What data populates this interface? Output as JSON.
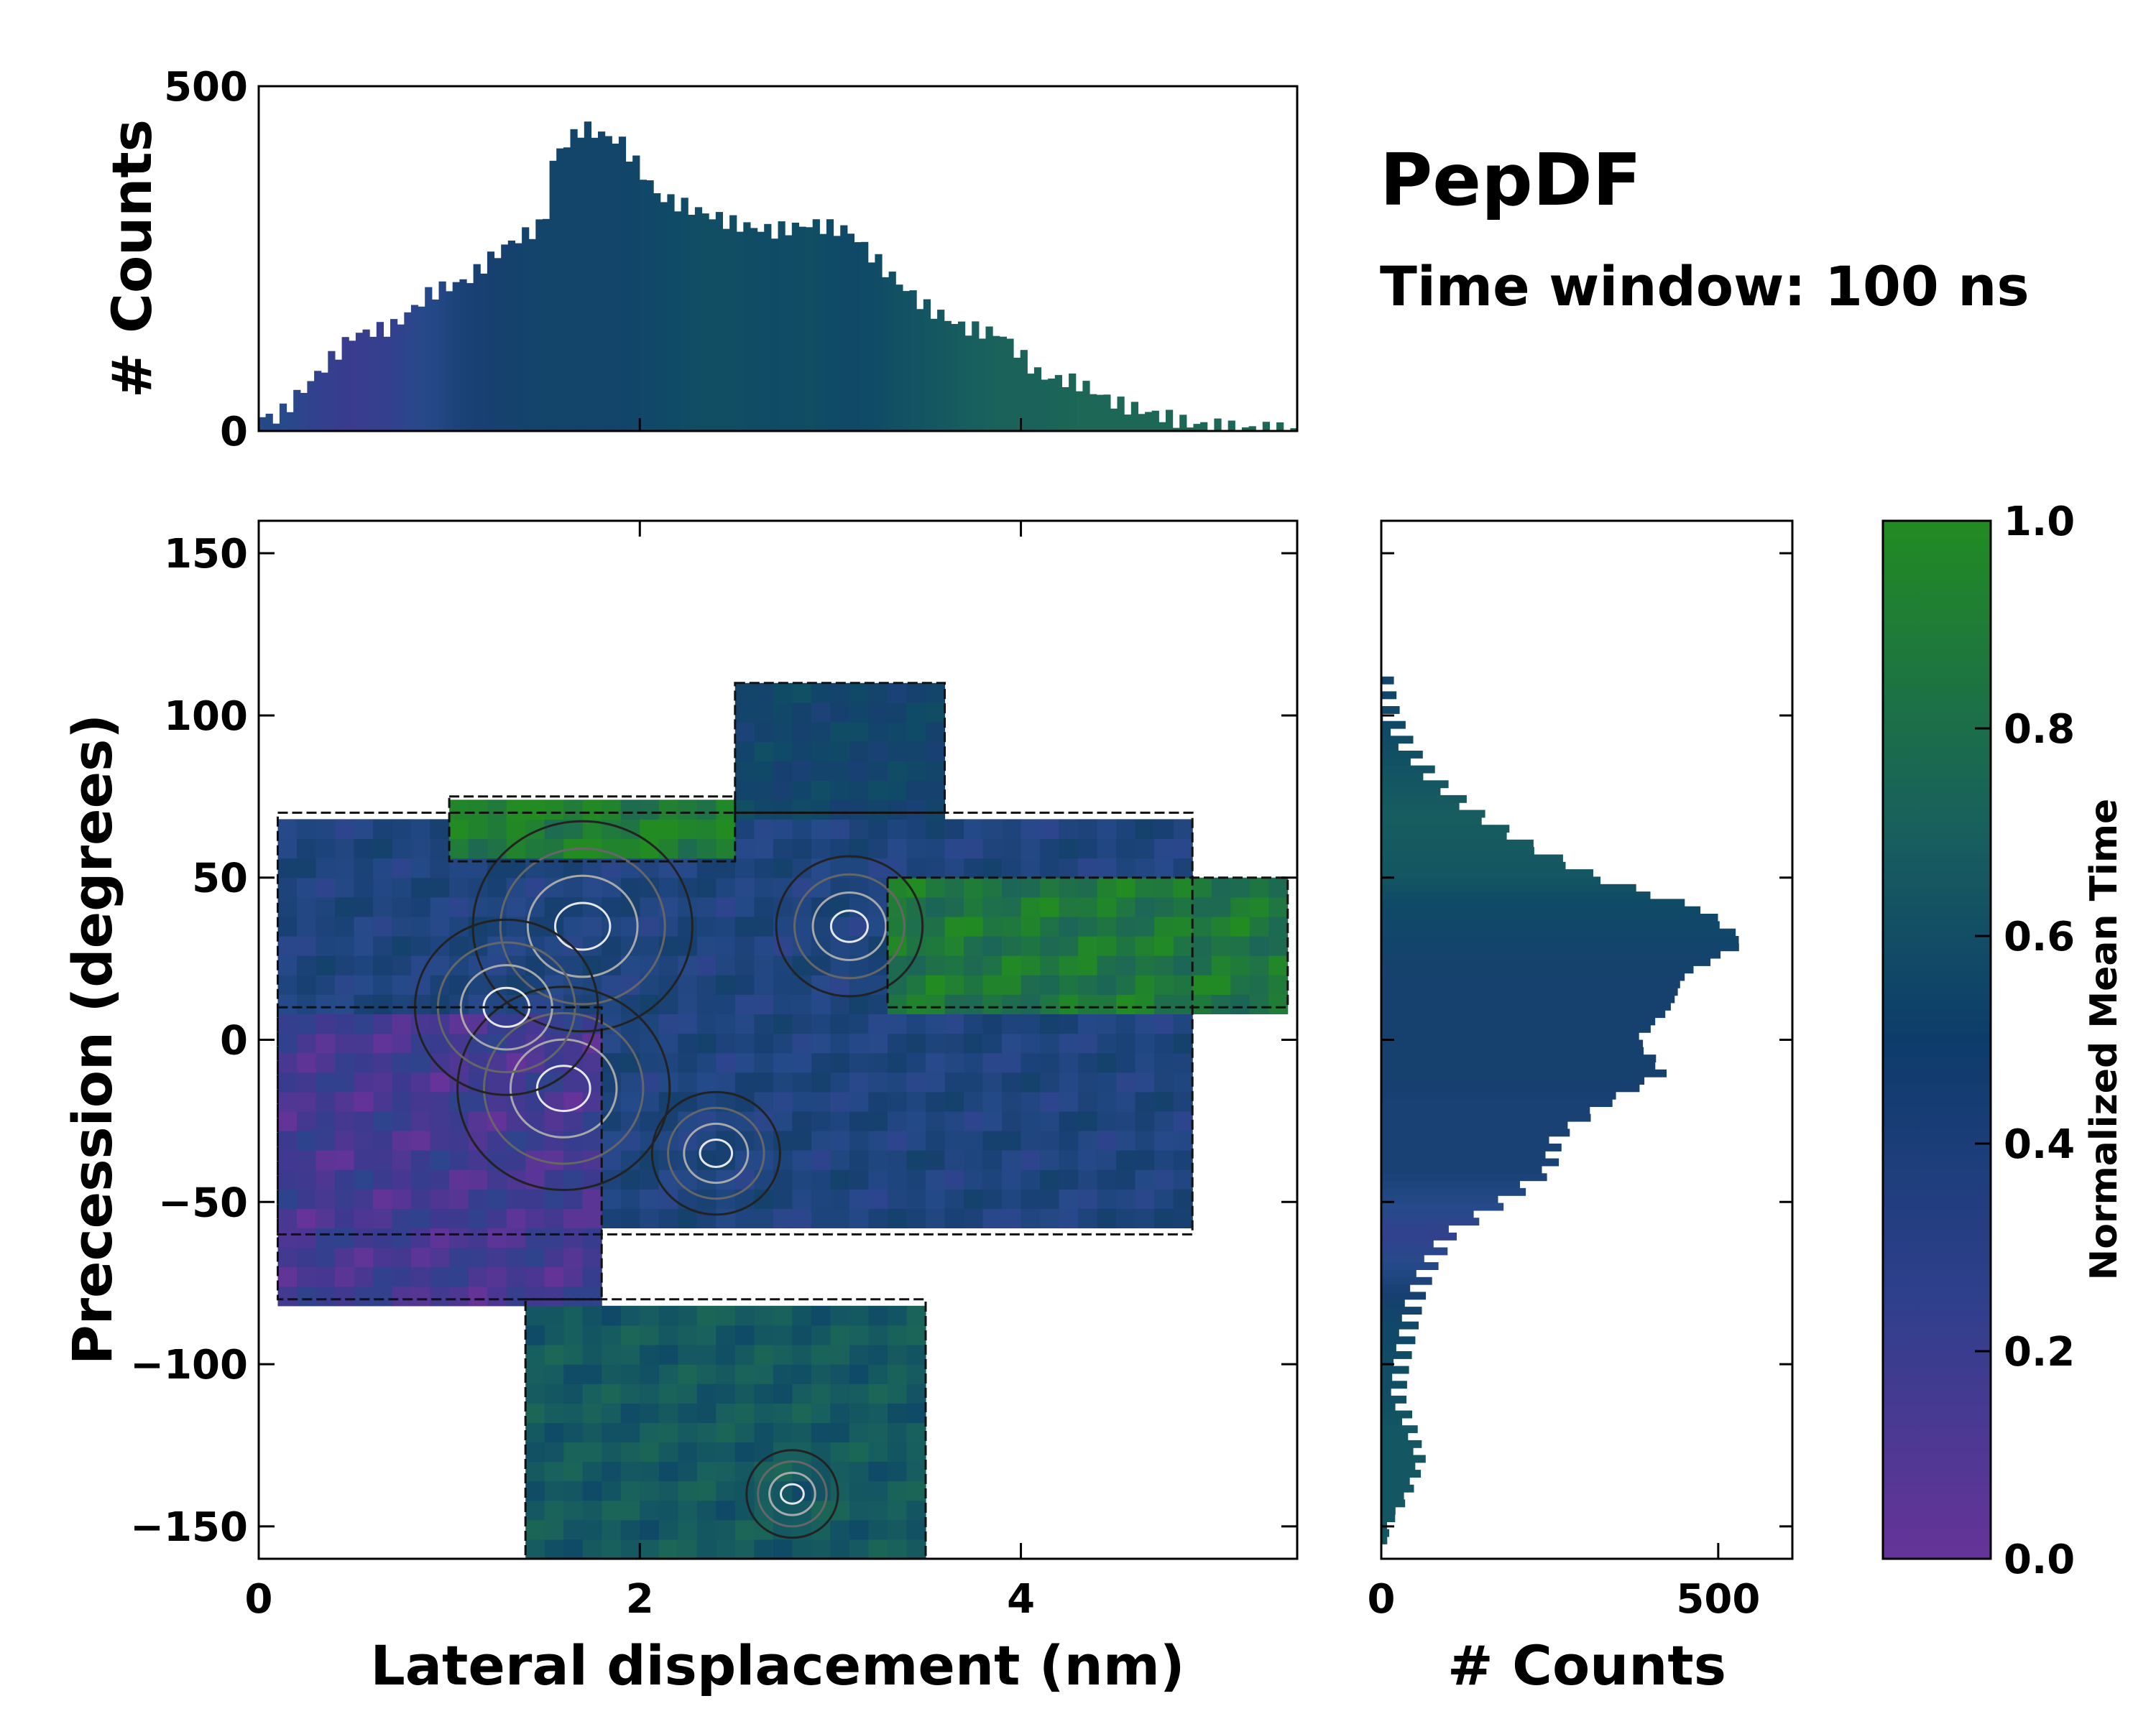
{
  "colors": {
    "viridis_like": [
      "#663399",
      "#3b3a8f",
      "#264a8a",
      "#173f6f",
      "#0f4a66",
      "#185f5e",
      "#1e6c4f",
      "#228b22"
    ]
  },
  "chart_data": [
    {
      "id": "main-2d-histogram",
      "type": "heatmap",
      "title": "PepDF",
      "subtitle": "Time window: 100 ns",
      "xlabel": "Lateral displacement (nm)",
      "ylabel": "Precession (degrees)",
      "xlim": [
        0,
        5.45
      ],
      "ylim": [
        -160,
        160
      ],
      "x_ticks": [
        0,
        2,
        4
      ],
      "x_tick_labels": [
        "0",
        "2",
        "4"
      ],
      "y_ticks": [
        150,
        100,
        50,
        0,
        -50,
        -100,
        -150
      ],
      "y_tick_labels": [
        "150",
        "100",
        "50",
        "0",
        "−50",
        "−100",
        "−150"
      ],
      "colorbar_label": "Normalized Mean Time",
      "colorbar_range": [
        0.0,
        1.0
      ],
      "colorbar_ticks": [
        "0.0",
        "0.2",
        "0.4",
        "0.6",
        "0.8",
        "1.0"
      ],
      "regions": [
        {
          "x": [
            0.1,
            4.9
          ],
          "y": [
            -60,
            70
          ],
          "mean_time": 0.35
        },
        {
          "x": [
            0.1,
            1.8
          ],
          "y": [
            -80,
            10
          ],
          "mean_time": 0.12
        },
        {
          "x": [
            1.0,
            2.5
          ],
          "y": [
            55,
            75
          ],
          "mean_time": 0.95
        },
        {
          "x": [
            3.3,
            5.4
          ],
          "y": [
            10,
            50
          ],
          "mean_time": 0.9
        },
        {
          "x": [
            1.4,
            3.5
          ],
          "y": [
            -160,
            -80
          ],
          "mean_time": 0.68
        },
        {
          "x": [
            2.5,
            3.6
          ],
          "y": [
            70,
            110
          ],
          "mean_time": 0.5
        }
      ],
      "density_peaks": [
        {
          "x": 1.7,
          "y": 35,
          "count": 60
        },
        {
          "x": 1.6,
          "y": -15,
          "count": 58
        },
        {
          "x": 1.3,
          "y": 10,
          "count": 50
        },
        {
          "x": 3.1,
          "y": 35,
          "count": 40
        },
        {
          "x": 2.4,
          "y": -35,
          "count": 35
        },
        {
          "x": 2.8,
          "y": -140,
          "count": 25
        }
      ]
    },
    {
      "id": "top-marginal-histogram",
      "type": "bar",
      "xlabel": "",
      "ylabel": "# Counts",
      "xlim": [
        0,
        5.45
      ],
      "ylim": [
        0,
        500
      ],
      "y_ticks": [
        0,
        500
      ],
      "y_tick_labels": [
        "0",
        "500"
      ],
      "x": [
        0.1,
        0.3,
        0.5,
        0.7,
        0.9,
        1.1,
        1.3,
        1.5,
        1.55,
        1.7,
        1.9,
        2.1,
        2.3,
        2.5,
        2.7,
        2.9,
        3.1,
        3.3,
        3.5,
        3.7,
        3.9,
        4.1,
        4.3,
        4.5,
        4.7,
        4.9,
        5.1,
        5.3
      ],
      "values": [
        20,
        80,
        140,
        150,
        200,
        220,
        270,
        300,
        400,
        440,
        420,
        340,
        320,
        300,
        290,
        300,
        290,
        230,
        180,
        150,
        140,
        80,
        70,
        40,
        25,
        10,
        5,
        2
      ],
      "mean_time": [
        0.3,
        0.2,
        0.15,
        0.2,
        0.3,
        0.4,
        0.45,
        0.5,
        0.5,
        0.5,
        0.5,
        0.55,
        0.6,
        0.6,
        0.58,
        0.6,
        0.55,
        0.6,
        0.65,
        0.7,
        0.75,
        0.75,
        0.8,
        0.8,
        0.8,
        0.8,
        0.8,
        0.8
      ]
    },
    {
      "id": "right-marginal-histogram",
      "type": "bar",
      "orientation": "horizontal",
      "xlabel": "# Counts",
      "ylabel": "",
      "xlim": [
        0,
        610
      ],
      "ylim": [
        -160,
        160
      ],
      "x_ticks": [
        0,
        500
      ],
      "x_tick_labels": [
        "0",
        "500"
      ],
      "y": [
        110,
        100,
        90,
        80,
        70,
        60,
        50,
        40,
        30,
        20,
        10,
        0,
        -10,
        -20,
        -30,
        -40,
        -50,
        -60,
        -70,
        -80,
        -90,
        -100,
        -110,
        -120,
        -130,
        -140,
        -150
      ],
      "values": [
        5,
        15,
        40,
        80,
        140,
        220,
        320,
        480,
        540,
        450,
        430,
        380,
        420,
        330,
        260,
        250,
        180,
        100,
        70,
        50,
        40,
        30,
        25,
        45,
        60,
        40,
        10
      ],
      "mean_time": [
        0.5,
        0.55,
        0.6,
        0.65,
        0.7,
        0.68,
        0.65,
        0.55,
        0.5,
        0.45,
        0.45,
        0.45,
        0.45,
        0.4,
        0.4,
        0.4,
        0.3,
        0.2,
        0.3,
        0.45,
        0.55,
        0.6,
        0.6,
        0.65,
        0.65,
        0.65,
        0.65
      ]
    }
  ]
}
